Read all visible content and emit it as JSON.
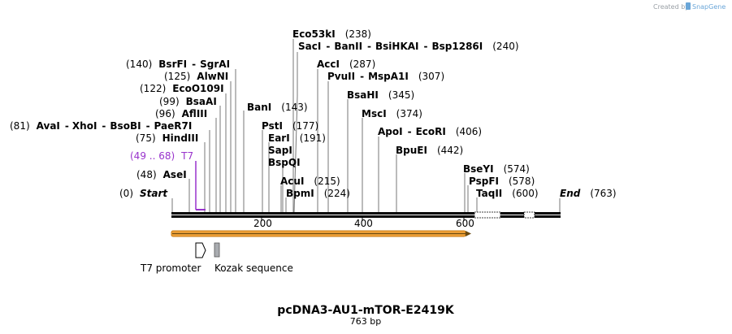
{
  "credit": {
    "prefix": "Created by",
    "brand": "SnapGene"
  },
  "map": {
    "name": "pcDNA3-AU1-mTOR-E2419K",
    "length_label": "763 bp",
    "start_label": "Start",
    "start_pos": "(0)",
    "end_label": "End",
    "end_pos": "(763)",
    "ticks": [
      "200",
      "400",
      "600"
    ]
  },
  "sites": [
    {
      "id": "eco53ki",
      "pos": "(238)",
      "names": [
        "Eco53kI"
      ]
    },
    {
      "id": "saci",
      "pos": "(240)",
      "names": [
        "SacI",
        "BanII",
        "BsiHKAI",
        "Bsp1286I"
      ]
    },
    {
      "id": "bsrfi",
      "pos": "(140)",
      "names": [
        "BsrFI",
        "SgrAI"
      ]
    },
    {
      "id": "acci",
      "pos": "(287)",
      "names": [
        "AccI"
      ]
    },
    {
      "id": "alwni",
      "pos": "(125)",
      "names": [
        "AlwNI"
      ]
    },
    {
      "id": "pvuii",
      "pos": "(307)",
      "names": [
        "PvuII",
        "MspA1I"
      ]
    },
    {
      "id": "ecoo109i",
      "pos": "(122)",
      "names": [
        "EcoO109I"
      ]
    },
    {
      "id": "bsaai",
      "pos": "(99)",
      "names": [
        "BsaAI"
      ]
    },
    {
      "id": "bsahi",
      "pos": "(345)",
      "names": [
        "BsaHI"
      ]
    },
    {
      "id": "bani",
      "pos": "(143)",
      "names": [
        "BanI"
      ]
    },
    {
      "id": "aflIII",
      "pos": "(96)",
      "names": [
        "AflIII"
      ]
    },
    {
      "id": "msci",
      "pos": "(374)",
      "names": [
        "MscI"
      ]
    },
    {
      "id": "avai",
      "pos": "(81)",
      "names": [
        "AvaI",
        "XhoI",
        "BsoBI",
        "PaeR7I"
      ]
    },
    {
      "id": "psti",
      "pos": "(177)",
      "names": [
        "PstI"
      ]
    },
    {
      "id": "apoi",
      "pos": "(406)",
      "names": [
        "ApoI",
        "EcoRI"
      ]
    },
    {
      "id": "hindiii",
      "pos": "(75)",
      "names": [
        "HindIII"
      ]
    },
    {
      "id": "eari",
      "pos": "(191)",
      "names": [
        "EarI"
      ]
    },
    {
      "id": "bpuei",
      "pos": "(442)",
      "names": [
        "BpuEI"
      ]
    },
    {
      "id": "sapi",
      "pos": "",
      "names": [
        "SapI"
      ]
    },
    {
      "id": "bspqi",
      "pos": "",
      "names": [
        "BspQI"
      ]
    },
    {
      "id": "asei",
      "pos": "(48)",
      "names": [
        "AseI"
      ]
    },
    {
      "id": "bseyi",
      "pos": "(574)",
      "names": [
        "BseYI"
      ]
    },
    {
      "id": "acui",
      "pos": "(215)",
      "names": [
        "AcuI"
      ]
    },
    {
      "id": "pspfi",
      "pos": "(578)",
      "names": [
        "PspFI"
      ]
    },
    {
      "id": "bpmi",
      "pos": "(224)",
      "names": [
        "BpmI"
      ]
    },
    {
      "id": "taqii",
      "pos": "(600)",
      "names": [
        "TaqII"
      ]
    }
  ],
  "primer": {
    "range": "(49 .. 68)",
    "name": "T7"
  },
  "features": [
    {
      "id": "t7-promoter",
      "label": "T7 promoter"
    },
    {
      "id": "kozak",
      "label": "Kozak sequence"
    }
  ],
  "colors": {
    "backbone": "#000000",
    "orf_fill": "#f2a33a",
    "orf_stroke": "#c97b10",
    "primer": "#9933cc",
    "kozak": "#a9acb0"
  }
}
